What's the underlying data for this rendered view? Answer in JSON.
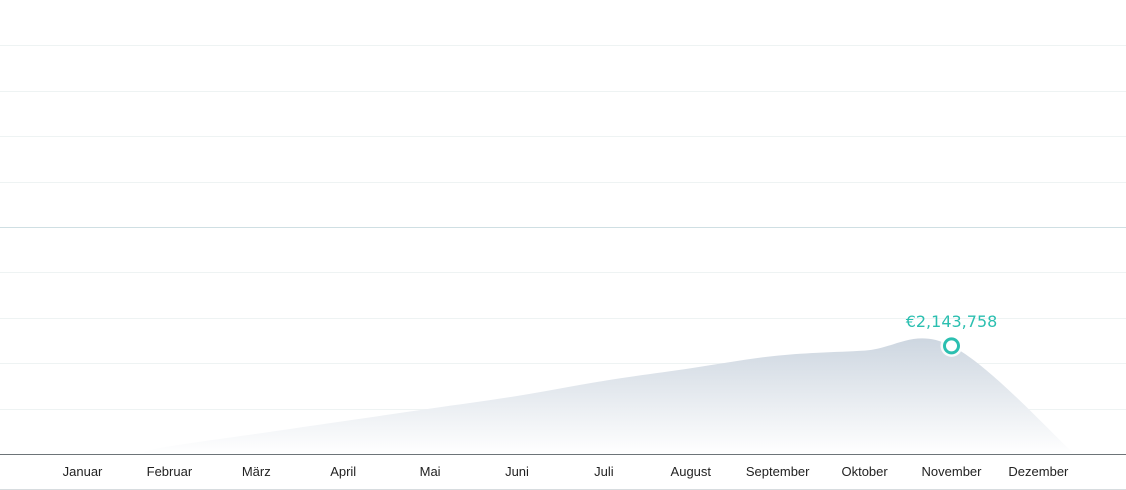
{
  "colors": {
    "accent": "#2bbfb0",
    "area_top": "#cdd6e0",
    "area_bottom": "#ffffff",
    "grid": "#eef3f3",
    "grid_mid": "#cfdfe3",
    "axis": "#6d7478",
    "label": "#222222"
  },
  "chart_data": {
    "type": "area",
    "categories": [
      "Januar",
      "Februar",
      "März",
      "April",
      "Mai",
      "Juni",
      "Juli",
      "August",
      "September",
      "Oktober",
      "November",
      "Dezember"
    ],
    "values": [
      0,
      150000,
      400000,
      650000,
      900000,
      1150000,
      1450000,
      1700000,
      1950000,
      2050000,
      2143758,
      0
    ],
    "highlight": {
      "index": 10,
      "label": "€2,143,758"
    },
    "ylim": [
      0,
      9000000
    ],
    "grid": true,
    "legend": "none"
  }
}
